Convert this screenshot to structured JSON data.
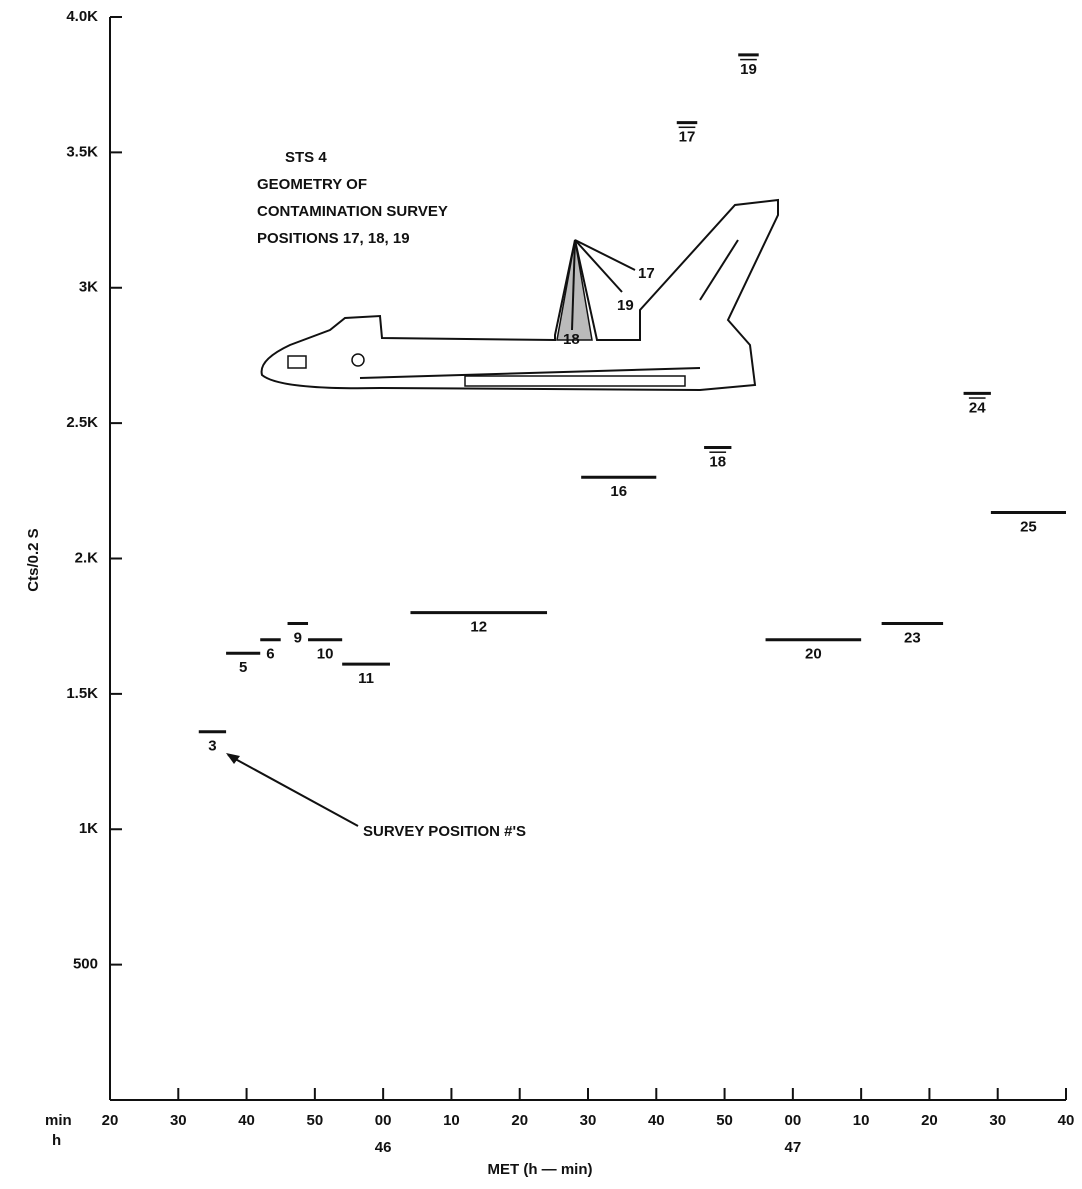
{
  "chart_data": {
    "type": "segments",
    "xlabel": "MET (h — min)",
    "ylabel": "Cts/0.2 S",
    "x_row_labels": [
      "min",
      "h"
    ],
    "xlim": [
      20,
      160
    ],
    "xticks": [
      20,
      30,
      40,
      50,
      {
        "value": 60,
        "label": "00"
      },
      {
        "value": 70,
        "label": "10"
      },
      {
        "value": 80,
        "label": "20"
      },
      {
        "value": 90,
        "label": "30"
      },
      {
        "value": 100,
        "label": "40"
      },
      {
        "value": 110,
        "label": "50"
      },
      {
        "value": 120,
        "label": "00"
      },
      {
        "value": 130,
        "label": "10"
      },
      {
        "value": 140,
        "label": "20"
      },
      {
        "value": 150,
        "label": "30"
      },
      {
        "value": 160,
        "label": "40"
      }
    ],
    "hour_ticks": [
      {
        "value": 60,
        "label": "46"
      },
      {
        "value": 120,
        "label": "47"
      }
    ],
    "ylim": [
      0,
      4000
    ],
    "yticks": [
      500,
      {
        "value": 1000,
        "label": "1K"
      },
      {
        "value": 1500,
        "label": "1.5K"
      },
      {
        "value": 2000,
        "label": "2.K"
      },
      {
        "value": 2500,
        "label": "2.5K"
      },
      {
        "value": 3000,
        "label": "3K"
      },
      {
        "value": 3500,
        "label": "3.5K"
      },
      {
        "value": 4000,
        "label": "4.0K"
      }
    ],
    "labels": [
      "3",
      "5",
      "6",
      "9",
      "10",
      "11",
      "12",
      "16",
      "17",
      "18",
      "19",
      "20",
      "23",
      "24",
      "25"
    ],
    "x_start": [
      33,
      37,
      42,
      46,
      49,
      54,
      64,
      89,
      103,
      107,
      112,
      116,
      133,
      145,
      149
    ],
    "x_end": [
      37,
      42,
      45,
      49,
      54,
      61,
      84,
      100,
      106,
      111,
      115,
      130,
      142,
      149,
      160
    ],
    "values": [
      1360,
      1650,
      1700,
      1760,
      1700,
      1610,
      1800,
      2300,
      3610,
      2410,
      3860,
      1700,
      1760,
      2610,
      2170
    ],
    "overlined": [
      "17",
      "18",
      "19",
      "24"
    ],
    "annotation": "SURVEY POSITION #'S",
    "inset": {
      "title": [
        "STS 4",
        "GEOMETRY OF",
        "CONTAMINATION SURVEY",
        "POSITIONS 17, 18, 19"
      ],
      "labels": [
        "17",
        "19",
        "18"
      ]
    }
  }
}
